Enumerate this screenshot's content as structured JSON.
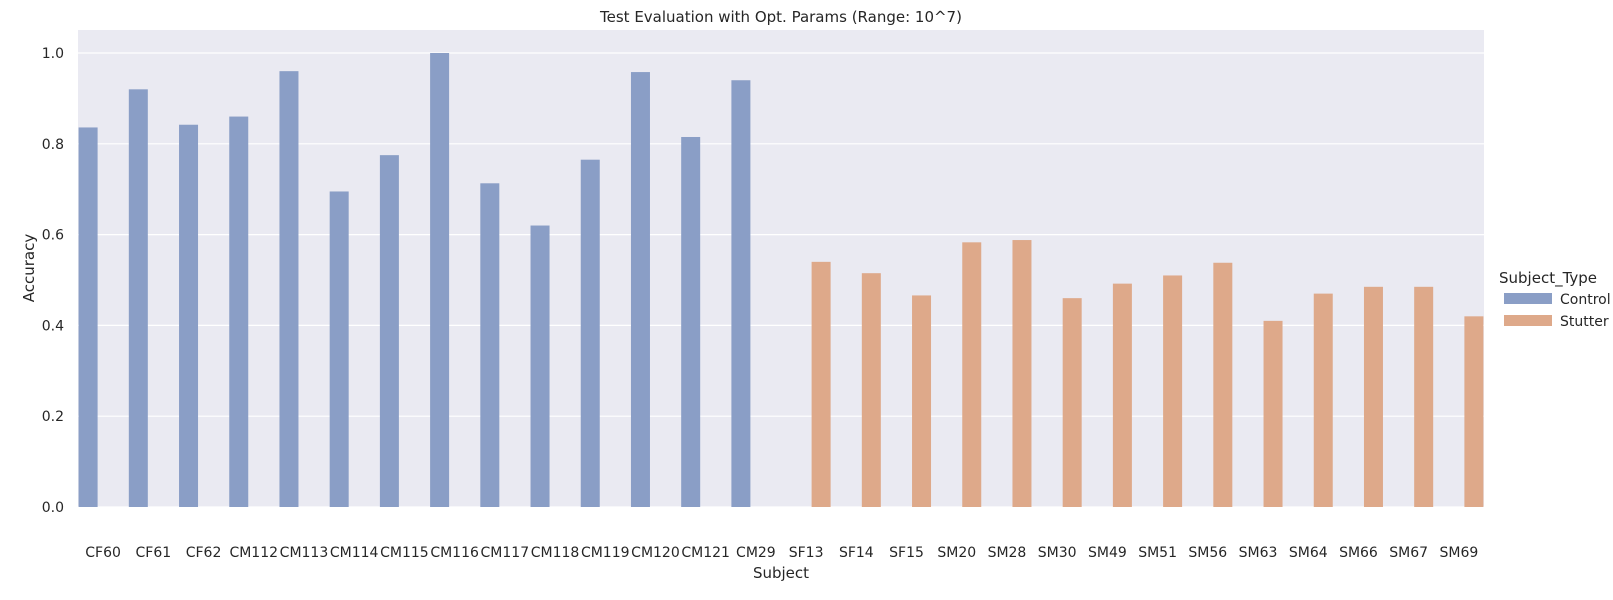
{
  "chart_data": {
    "type": "bar",
    "title": "Test Evaluation with Opt. Params (Range: 10^7)",
    "xlabel": "Subject",
    "ylabel": "Accuracy",
    "ylim": [
      0,
      1.05
    ],
    "yticks": [
      0.0,
      0.2,
      0.4,
      0.6,
      0.8,
      1.0
    ],
    "ytick_labels": [
      "0.0",
      "0.2",
      "0.4",
      "0.6",
      "0.8",
      "1.0"
    ],
    "grid": true,
    "legend_title": "Subject_Type",
    "legend_position": "right",
    "categories": [
      "CF60",
      "CF61",
      "CF62",
      "CM112",
      "CM113",
      "CM114",
      "CM115",
      "CM116",
      "CM117",
      "CM118",
      "CM119",
      "CM120",
      "CM121",
      "CM29",
      "SF13",
      "SF14",
      "SF15",
      "SM20",
      "SM28",
      "SM30",
      "SM49",
      "SM51",
      "SM56",
      "SM63",
      "SM64",
      "SM66",
      "SM67",
      "SM69"
    ],
    "series": [
      {
        "name": "Control",
        "color": "#8a9ec6",
        "values": [
          0.836,
          0.92,
          0.842,
          0.86,
          0.96,
          0.695,
          0.775,
          1.0,
          0.713,
          0.62,
          0.765,
          0.958,
          0.815,
          0.94,
          null,
          null,
          null,
          null,
          null,
          null,
          null,
          null,
          null,
          null,
          null,
          null,
          null,
          null
        ]
      },
      {
        "name": "Stutter",
        "color": "#dea98a",
        "values": [
          null,
          null,
          null,
          null,
          null,
          null,
          null,
          null,
          null,
          null,
          null,
          null,
          null,
          null,
          0.54,
          0.515,
          0.466,
          0.583,
          0.588,
          0.46,
          0.492,
          0.51,
          0.538,
          0.41,
          0.47,
          0.485,
          0.485,
          0.42
        ]
      }
    ]
  }
}
